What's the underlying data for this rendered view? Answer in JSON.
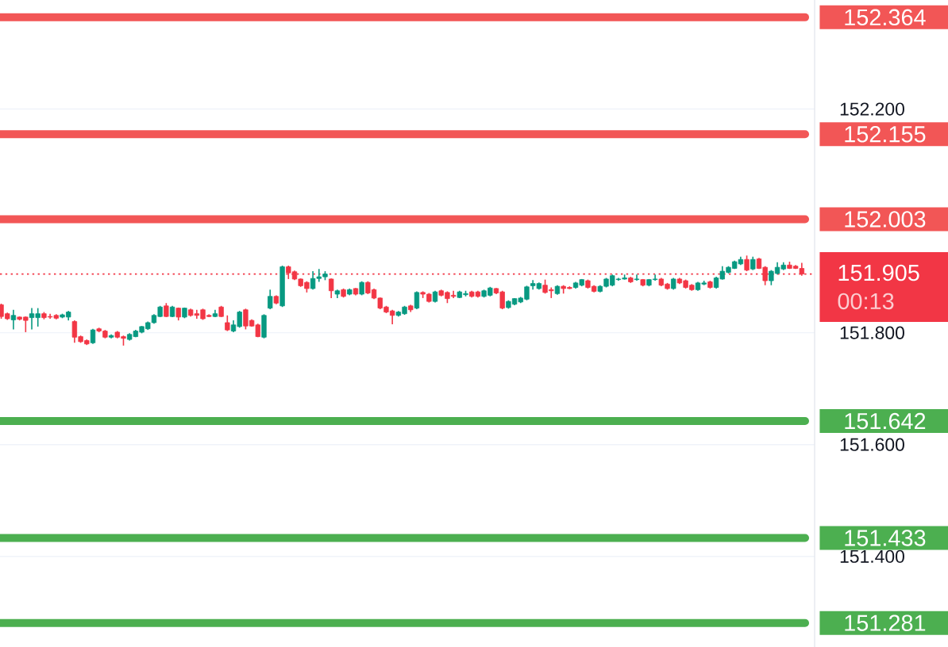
{
  "chart_data": {
    "type": "candlestick",
    "categories": [
      null,
      null,
      null,
      null,
      null,
      null,
      null,
      null,
      null,
      null,
      null,
      null,
      null,
      null,
      null,
      null,
      null,
      null,
      null,
      null,
      null,
      null,
      null,
      null,
      null,
      null,
      null,
      null,
      null,
      null,
      null,
      null,
      null,
      null,
      null,
      null,
      null,
      null,
      null,
      null,
      null,
      null,
      null,
      null,
      null,
      null,
      null,
      null,
      null,
      null,
      null,
      null,
      null,
      null,
      null,
      null,
      null,
      null,
      null,
      null,
      null,
      null,
      null,
      null,
      null,
      null,
      null,
      null,
      null,
      null,
      null,
      null,
      null,
      null,
      null,
      null,
      null,
      null,
      null,
      null,
      null,
      null,
      null,
      null,
      null,
      null,
      null,
      null,
      null,
      null,
      null,
      null,
      null,
      null,
      null,
      null,
      null,
      null,
      null,
      null,
      null,
      null,
      null,
      null,
      null,
      null,
      null,
      null,
      null,
      null,
      null,
      null,
      null,
      null,
      null,
      null,
      null,
      null,
      null,
      null,
      null,
      null,
      null,
      null,
      null,
      null,
      null,
      null,
      null,
      null,
      null,
      null
    ],
    "ohlc": [
      [
        151.85,
        151.852,
        151.825,
        151.829
      ],
      [
        151.834,
        151.836,
        151.823,
        151.825
      ],
      [
        151.823,
        151.841,
        151.806,
        151.831
      ],
      [
        151.828,
        151.829,
        151.822,
        151.824
      ],
      [
        151.828,
        151.829,
        151.801,
        151.822
      ],
      [
        151.827,
        151.844,
        151.806,
        151.834
      ],
      [
        151.827,
        151.844,
        151.811,
        151.834
      ],
      [
        151.834,
        151.837,
        151.824,
        151.827
      ],
      [
        151.829,
        151.834,
        151.825,
        151.828
      ],
      [
        151.831,
        151.833,
        151.824,
        151.826
      ],
      [
        151.828,
        151.834,
        151.826,
        151.832
      ],
      [
        151.828,
        151.839,
        151.822,
        151.837
      ],
      [
        151.82,
        151.822,
        151.782,
        151.792
      ],
      [
        151.793,
        151.795,
        151.782,
        151.784
      ],
      [
        151.786,
        151.788,
        151.778,
        151.78
      ],
      [
        151.782,
        151.807,
        151.78,
        151.805
      ],
      [
        151.807,
        151.809,
        151.801,
        151.803
      ],
      [
        151.803,
        151.805,
        151.79,
        151.792
      ],
      [
        151.792,
        151.797,
        151.79,
        151.795
      ],
      [
        151.801,
        151.803,
        151.79,
        151.792
      ],
      [
        151.793,
        151.795,
        151.777,
        151.79
      ],
      [
        151.788,
        151.799,
        151.786,
        151.797
      ],
      [
        151.793,
        151.805,
        151.792,
        151.803
      ],
      [
        151.801,
        151.812,
        151.799,
        151.811
      ],
      [
        151.807,
        151.82,
        151.805,
        151.818
      ],
      [
        151.818,
        151.833,
        151.816,
        151.831
      ],
      [
        151.829,
        151.848,
        151.828,
        151.846
      ],
      [
        151.848,
        151.853,
        151.828,
        151.829
      ],
      [
        151.829,
        151.848,
        151.828,
        151.846
      ],
      [
        151.844,
        151.845,
        151.822,
        151.828
      ],
      [
        151.828,
        151.845,
        151.826,
        151.844
      ],
      [
        151.841,
        151.843,
        151.829,
        151.831
      ],
      [
        151.834,
        151.841,
        151.825,
        151.831
      ],
      [
        151.841,
        151.843,
        151.823,
        151.825
      ],
      [
        151.831,
        151.833,
        151.828,
        151.829
      ],
      [
        151.829,
        151.841,
        151.828,
        151.834
      ],
      [
        151.846,
        151.848,
        151.828,
        151.829
      ],
      [
        151.818,
        151.831,
        151.803,
        151.805
      ],
      [
        151.803,
        151.822,
        151.801,
        151.814
      ],
      [
        151.811,
        151.839,
        151.809,
        151.837
      ],
      [
        151.841,
        151.843,
        151.806,
        151.812
      ],
      [
        151.822,
        151.824,
        151.811,
        151.812
      ],
      [
        151.814,
        151.816,
        151.792,
        151.793
      ],
      [
        151.792,
        151.833,
        151.79,
        151.831
      ],
      [
        151.844,
        151.877,
        151.842,
        151.865
      ],
      [
        151.865,
        151.867,
        151.851,
        151.853
      ],
      [
        151.848,
        151.92,
        151.846,
        151.918
      ],
      [
        151.918,
        151.92,
        151.896,
        151.907
      ],
      [
        151.909,
        151.911,
        151.894,
        151.896
      ],
      [
        151.896,
        151.897,
        151.882,
        151.884
      ],
      [
        151.89,
        151.892,
        151.872,
        151.879
      ],
      [
        151.879,
        151.91,
        151.877,
        151.897
      ],
      [
        151.897,
        151.914,
        151.891,
        151.9
      ],
      [
        151.9,
        151.91,
        151.894,
        151.905
      ],
      [
        151.896,
        151.897,
        151.862,
        151.875
      ],
      [
        151.869,
        151.877,
        151.862,
        151.875
      ],
      [
        151.877,
        151.879,
        151.863,
        151.865
      ],
      [
        151.869,
        151.879,
        151.867,
        151.877
      ],
      [
        151.879,
        151.88,
        151.867,
        151.869
      ],
      [
        151.869,
        151.892,
        151.867,
        151.89
      ],
      [
        151.89,
        151.892,
        151.869,
        151.871
      ],
      [
        151.877,
        151.879,
        151.86,
        151.862
      ],
      [
        151.862,
        151.863,
        151.842,
        151.844
      ],
      [
        151.846,
        151.848,
        151.835,
        151.837
      ],
      [
        151.839,
        151.841,
        151.815,
        151.831
      ],
      [
        151.831,
        151.839,
        151.829,
        151.837
      ],
      [
        151.834,
        151.848,
        151.832,
        151.846
      ],
      [
        151.848,
        151.85,
        151.837,
        151.841
      ],
      [
        151.844,
        151.874,
        151.842,
        151.872
      ],
      [
        151.872,
        151.874,
        151.862,
        151.869
      ],
      [
        151.869,
        151.871,
        151.854,
        151.856
      ],
      [
        151.856,
        151.875,
        151.854,
        151.873
      ],
      [
        151.875,
        151.877,
        151.865,
        151.867
      ],
      [
        151.872,
        151.874,
        151.853,
        151.861
      ],
      [
        151.867,
        151.875,
        151.862,
        151.865
      ],
      [
        151.863,
        151.875,
        151.862,
        151.873
      ],
      [
        151.868,
        151.875,
        151.865,
        151.87
      ],
      [
        151.873,
        151.875,
        151.863,
        151.865
      ],
      [
        151.873,
        151.875,
        151.863,
        151.865
      ],
      [
        151.865,
        151.877,
        151.863,
        151.875
      ],
      [
        151.867,
        151.882,
        151.865,
        151.88
      ],
      [
        151.879,
        151.88,
        151.869,
        151.871
      ],
      [
        151.873,
        151.875,
        151.842,
        151.844
      ],
      [
        151.845,
        151.858,
        151.843,
        151.856
      ],
      [
        151.851,
        151.862,
        151.849,
        151.861
      ],
      [
        151.855,
        151.864,
        151.853,
        151.862
      ],
      [
        151.86,
        151.884,
        151.858,
        151.882
      ],
      [
        151.884,
        151.894,
        151.877,
        151.888
      ],
      [
        151.879,
        151.89,
        151.877,
        151.888
      ],
      [
        151.885,
        151.895,
        151.87,
        151.872
      ],
      [
        151.877,
        151.881,
        151.862,
        151.875
      ],
      [
        151.87,
        151.885,
        151.868,
        151.883
      ],
      [
        151.883,
        151.885,
        151.87,
        151.879
      ],
      [
        151.881,
        151.883,
        151.878,
        151.879
      ],
      [
        151.881,
        151.891,
        151.879,
        151.889
      ],
      [
        151.885,
        151.896,
        151.883,
        151.895
      ],
      [
        151.893,
        151.895,
        151.879,
        151.881
      ],
      [
        151.883,
        151.885,
        151.872,
        151.874
      ],
      [
        151.874,
        151.885,
        151.872,
        151.883
      ],
      [
        151.883,
        151.898,
        151.881,
        151.896
      ],
      [
        151.885,
        151.904,
        151.883,
        151.902
      ],
      [
        151.895,
        151.898,
        151.893,
        151.896
      ],
      [
        151.896,
        151.904,
        151.895,
        151.898
      ],
      [
        151.898,
        151.9,
        151.889,
        151.891
      ],
      [
        151.895,
        151.904,
        151.893,
        151.896
      ],
      [
        151.895,
        151.896,
        151.883,
        151.885
      ],
      [
        151.885,
        151.896,
        151.883,
        151.895
      ],
      [
        151.895,
        151.904,
        151.893,
        151.896
      ],
      [
        151.896,
        151.898,
        151.883,
        151.885
      ],
      [
        151.887,
        151.889,
        151.877,
        151.879
      ],
      [
        151.879,
        151.898,
        151.877,
        151.896
      ],
      [
        151.896,
        151.898,
        151.887,
        151.889
      ],
      [
        151.893,
        151.895,
        151.879,
        151.881
      ],
      [
        151.885,
        151.887,
        151.875,
        151.877
      ],
      [
        151.877,
        151.891,
        151.875,
        151.889
      ],
      [
        151.887,
        151.893,
        151.885,
        151.889
      ],
      [
        151.891,
        151.893,
        151.879,
        151.881
      ],
      [
        151.881,
        151.9,
        151.879,
        151.898
      ],
      [
        151.896,
        151.919,
        151.895,
        151.91
      ],
      [
        151.908,
        151.919,
        151.906,
        151.917
      ],
      [
        151.915,
        151.929,
        151.914,
        151.927
      ],
      [
        151.923,
        151.936,
        151.921,
        151.931
      ],
      [
        151.931,
        151.938,
        151.91,
        151.912
      ],
      [
        151.914,
        151.936,
        151.912,
        151.931
      ],
      [
        151.932,
        151.934,
        151.914,
        151.915
      ],
      [
        151.917,
        151.919,
        151.885,
        151.893
      ],
      [
        151.893,
        151.912,
        151.885,
        151.91
      ],
      [
        151.906,
        151.926,
        151.904,
        151.917
      ],
      [
        151.914,
        151.926,
        151.912,
        151.921
      ],
      [
        151.921,
        151.927,
        151.914,
        151.915
      ],
      [
        151.919,
        151.921,
        151.914,
        151.915
      ],
      [
        151.915,
        151.925,
        151.902,
        151.905
      ]
    ],
    "colors": [
      "#f23645",
      "#f23645",
      "#089981",
      "#f23645",
      "#f23645",
      "#089981",
      "#089981",
      "#f23645",
      "#f23645",
      "#f23645",
      "#089981",
      "#089981",
      "#f23645",
      "#f23645",
      "#f23645",
      "#089981",
      "#f23645",
      "#f23645",
      "#089981",
      "#f23645",
      "#f23645",
      "#089981",
      "#089981",
      "#089981",
      "#089981",
      "#089981",
      "#089981",
      "#f23645",
      "#089981",
      "#f23645",
      "#089981",
      "#f23645",
      "#f23645",
      "#f23645",
      "#f23645",
      "#089981",
      "#f23645",
      "#f23645",
      "#089981",
      "#089981",
      "#f23645",
      "#f23645",
      "#f23645",
      "#089981",
      "#089981",
      "#f23645",
      "#089981",
      "#f23645",
      "#f23645",
      "#f23645",
      "#f23645",
      "#089981",
      "#089981",
      "#089981",
      "#f23645",
      "#089981",
      "#f23645",
      "#089981",
      "#f23645",
      "#089981",
      "#f23645",
      "#f23645",
      "#f23645",
      "#f23645",
      "#f23645",
      "#089981",
      "#089981",
      "#f23645",
      "#089981",
      "#f23645",
      "#f23645",
      "#089981",
      "#f23645",
      "#f23645",
      "#f23645",
      "#089981",
      "#089981",
      "#f23645",
      "#f23645",
      "#089981",
      "#089981",
      "#f23645",
      "#f23645",
      "#089981",
      "#089981",
      "#089981",
      "#089981",
      "#089981",
      "#089981",
      "#f23645",
      "#f23645",
      "#089981",
      "#f23645",
      "#f23645",
      "#089981",
      "#089981",
      "#f23645",
      "#f23645",
      "#089981",
      "#089981",
      "#089981",
      "#089981",
      "#089981",
      "#f23645",
      "#089981",
      "#f23645",
      "#089981",
      "#089981",
      "#f23645",
      "#f23645",
      "#089981",
      "#f23645",
      "#f23645",
      "#f23645",
      "#089981",
      "#089981",
      "#f23645",
      "#089981",
      "#089981",
      "#089981",
      "#089981",
      "#089981",
      "#f23645",
      "#089981",
      "#f23645",
      "#f23645",
      "#089981",
      "#089981",
      "#089981",
      "#f23645",
      "#f23645",
      "#f23645"
    ],
    "ylim": [
      151.238,
      152.395
    ],
    "yticks": [
      {
        "value": 151.4,
        "label": "151.400"
      },
      {
        "value": 151.6,
        "label": "151.600"
      },
      {
        "value": 151.8,
        "label": "151.800"
      },
      {
        "value": 152.2,
        "label": "152.200"
      }
    ],
    "grid": "y",
    "ref_lines": [
      {
        "axis": "y",
        "value": 152.364,
        "label": "152.364",
        "color": "#f25656"
      },
      {
        "axis": "y",
        "value": 152.155,
        "label": "152.155",
        "color": "#f25656"
      },
      {
        "axis": "y",
        "value": 152.003,
        "label": "152.003",
        "color": "#f25656"
      },
      {
        "axis": "y",
        "value": 151.905,
        "label": "151.905",
        "color": "#f23645",
        "line_style": "dotted"
      },
      {
        "axis": "y",
        "value": 151.642,
        "label": "151.642",
        "color": "#4caf50"
      },
      {
        "axis": "y",
        "value": 151.433,
        "label": "151.433",
        "color": "#4caf50"
      },
      {
        "axis": "y",
        "value": 151.281,
        "label": "151.281",
        "color": "#4caf50"
      }
    ],
    "annotations": [
      "00:13"
    ]
  }
}
